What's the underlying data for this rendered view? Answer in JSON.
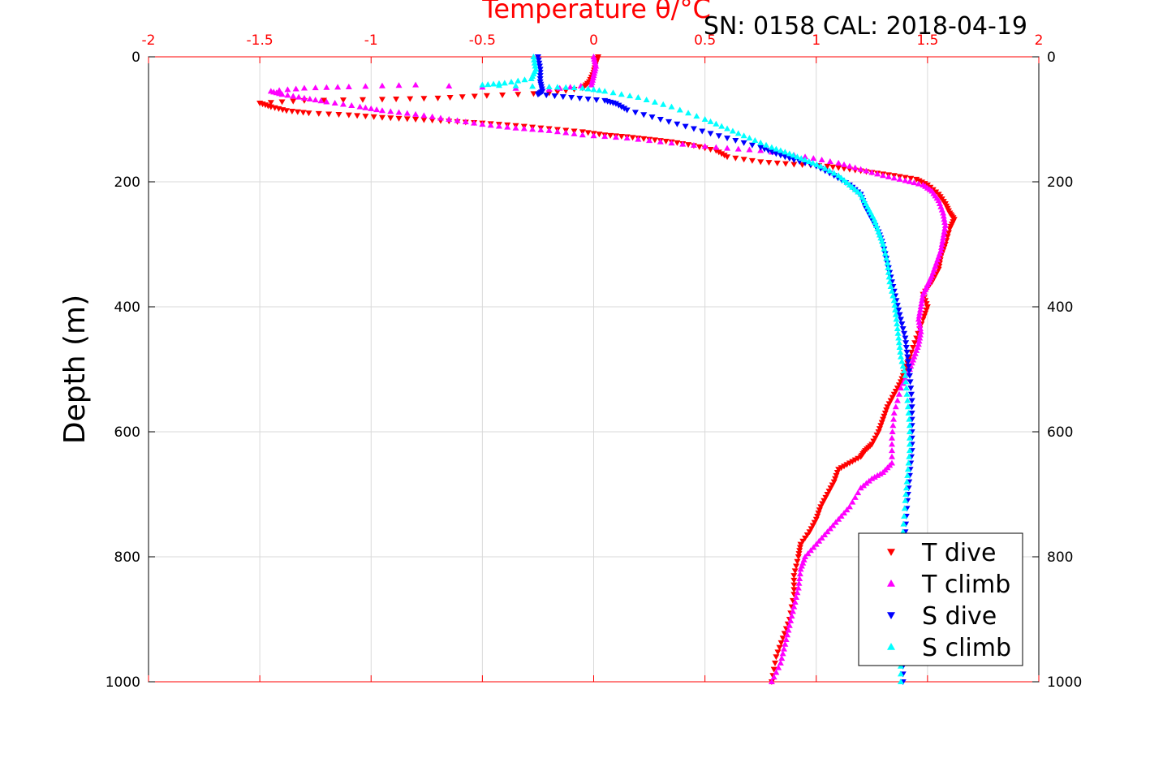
{
  "chart_data": {
    "type": "scatter",
    "title": "Temperature θ/°C",
    "annotation": "SN: 0158  CAL: 2018-04-19",
    "xlabel": "Temperature θ/°C",
    "ylabel": "Depth (m)",
    "xlim": [
      -2,
      2
    ],
    "ylim": [
      0,
      1000
    ],
    "y_reversed": true,
    "x_ticks": [
      "-2",
      "-1.5",
      "-1",
      "-0.5",
      "0",
      "0.5",
      "1",
      "1.5",
      "2"
    ],
    "y_ticks": [
      "0",
      "200",
      "400",
      "600",
      "800",
      "1000"
    ],
    "grid": true,
    "legend_position": "bottom-right",
    "colors": {
      "axis_x": "#ff0000",
      "axis_y": "#000000",
      "grid": "#d9d9d9"
    },
    "series": [
      {
        "name": "T dive",
        "marker": "triangle-down",
        "color": "#ff0000",
        "points": [
          [
            0.02,
            0
          ],
          [
            0.01,
            10
          ],
          [
            0.0,
            25
          ],
          [
            -0.02,
            40
          ],
          [
            -0.05,
            50
          ],
          [
            -0.2,
            58
          ],
          [
            -0.48,
            62
          ],
          [
            -0.7,
            66
          ],
          [
            -0.95,
            68
          ],
          [
            -1.3,
            70
          ],
          [
            -1.5,
            74
          ],
          [
            -1.45,
            80
          ],
          [
            -1.38,
            86
          ],
          [
            -1.28,
            90
          ],
          [
            -1.1,
            93
          ],
          [
            -0.95,
            97
          ],
          [
            -0.8,
            100
          ],
          [
            -0.65,
            103
          ],
          [
            -0.5,
            106
          ],
          [
            -0.35,
            110
          ],
          [
            -0.2,
            115
          ],
          [
            -0.05,
            120
          ],
          [
            0.05,
            125
          ],
          [
            0.15,
            128
          ],
          [
            0.25,
            132
          ],
          [
            0.35,
            136
          ],
          [
            0.45,
            142
          ],
          [
            0.55,
            150
          ],
          [
            0.6,
            160
          ],
          [
            0.75,
            168
          ],
          [
            0.9,
            172
          ],
          [
            1.05,
            175
          ],
          [
            1.15,
            180
          ],
          [
            1.25,
            185
          ],
          [
            1.35,
            190
          ],
          [
            1.45,
            196
          ],
          [
            1.5,
            205
          ],
          [
            1.55,
            220
          ],
          [
            1.58,
            235
          ],
          [
            1.6,
            250
          ],
          [
            1.62,
            260
          ],
          [
            1.6,
            275
          ],
          [
            1.58,
            300
          ],
          [
            1.56,
            320
          ],
          [
            1.55,
            340
          ],
          [
            1.52,
            360
          ],
          [
            1.48,
            380
          ],
          [
            1.5,
            400
          ],
          [
            1.48,
            420
          ],
          [
            1.45,
            450
          ],
          [
            1.42,
            480
          ],
          [
            1.4,
            500
          ],
          [
            1.38,
            520
          ],
          [
            1.35,
            540
          ],
          [
            1.32,
            560
          ],
          [
            1.3,
            580
          ],
          [
            1.28,
            600
          ],
          [
            1.25,
            620
          ],
          [
            1.22,
            630
          ],
          [
            1.2,
            640
          ],
          [
            1.15,
            650
          ],
          [
            1.1,
            660
          ],
          [
            1.08,
            680
          ],
          [
            1.05,
            700
          ],
          [
            1.02,
            720
          ],
          [
            1.0,
            740
          ],
          [
            0.97,
            760
          ],
          [
            0.93,
            780
          ],
          [
            0.92,
            800
          ],
          [
            0.9,
            830
          ],
          [
            0.9,
            860
          ],
          [
            0.88,
            900
          ],
          [
            0.85,
            930
          ],
          [
            0.82,
            960
          ],
          [
            0.8,
            1000
          ]
        ]
      },
      {
        "name": "T climb",
        "marker": "triangle-up",
        "color": "#ff00ff",
        "points": [
          [
            0.0,
            0
          ],
          [
            0.01,
            15
          ],
          [
            0.0,
            30
          ],
          [
            -0.01,
            45
          ],
          [
            -0.2,
            52
          ],
          [
            -0.8,
            45
          ],
          [
            -1.1,
            48
          ],
          [
            -1.3,
            50
          ],
          [
            -1.45,
            55
          ],
          [
            -1.4,
            60
          ],
          [
            -1.3,
            66
          ],
          [
            -1.2,
            72
          ],
          [
            -1.05,
            80
          ],
          [
            -0.95,
            86
          ],
          [
            -0.8,
            92
          ],
          [
            -0.65,
            100
          ],
          [
            -0.5,
            108
          ],
          [
            -0.35,
            114
          ],
          [
            -0.2,
            118
          ],
          [
            -0.05,
            125
          ],
          [
            0.15,
            130
          ],
          [
            0.35,
            138
          ],
          [
            0.55,
            145
          ],
          [
            0.75,
            150
          ],
          [
            0.95,
            160
          ],
          [
            1.1,
            170
          ],
          [
            1.2,
            180
          ],
          [
            1.3,
            190
          ],
          [
            1.4,
            198
          ],
          [
            1.48,
            205
          ],
          [
            1.52,
            215
          ],
          [
            1.55,
            230
          ],
          [
            1.57,
            250
          ],
          [
            1.58,
            270
          ],
          [
            1.57,
            290
          ],
          [
            1.56,
            310
          ],
          [
            1.54,
            330
          ],
          [
            1.52,
            350
          ],
          [
            1.5,
            365
          ],
          [
            1.48,
            380
          ],
          [
            1.47,
            400
          ],
          [
            1.46,
            420
          ],
          [
            1.47,
            440
          ],
          [
            1.46,
            460
          ],
          [
            1.44,
            480
          ],
          [
            1.42,
            500
          ],
          [
            1.38,
            530
          ],
          [
            1.35,
            570
          ],
          [
            1.34,
            610
          ],
          [
            1.34,
            650
          ],
          [
            1.3,
            665
          ],
          [
            1.25,
            675
          ],
          [
            1.2,
            690
          ],
          [
            1.15,
            720
          ],
          [
            1.1,
            740
          ],
          [
            1.05,
            760
          ],
          [
            1.0,
            780
          ],
          [
            0.95,
            800
          ],
          [
            0.93,
            820
          ],
          [
            0.92,
            850
          ],
          [
            0.9,
            880
          ],
          [
            0.88,
            910
          ],
          [
            0.86,
            940
          ],
          [
            0.84,
            970
          ],
          [
            0.8,
            1000
          ]
        ]
      },
      {
        "name": "S dive",
        "marker": "triangle-down",
        "color": "#0000ff",
        "points": [
          [
            -0.25,
            0
          ],
          [
            -0.24,
            20
          ],
          [
            -0.24,
            40
          ],
          [
            -0.23,
            55
          ],
          [
            -0.25,
            60
          ],
          [
            -0.1,
            65
          ],
          [
            0.05,
            70
          ],
          [
            0.1,
            75
          ],
          [
            0.15,
            85
          ],
          [
            0.3,
            100
          ],
          [
            0.45,
            115
          ],
          [
            0.6,
            130
          ],
          [
            0.75,
            145
          ],
          [
            0.82,
            155
          ],
          [
            0.9,
            165
          ],
          [
            1.0,
            175
          ],
          [
            1.08,
            190
          ],
          [
            1.15,
            205
          ],
          [
            1.2,
            220
          ],
          [
            1.22,
            240
          ],
          [
            1.25,
            260
          ],
          [
            1.28,
            280
          ],
          [
            1.3,
            300
          ],
          [
            1.32,
            330
          ],
          [
            1.34,
            360
          ],
          [
            1.36,
            390
          ],
          [
            1.38,
            420
          ],
          [
            1.4,
            450
          ],
          [
            1.41,
            480
          ],
          [
            1.42,
            510
          ],
          [
            1.43,
            550
          ],
          [
            1.43,
            590
          ],
          [
            1.43,
            630
          ],
          [
            1.42,
            670
          ],
          [
            1.41,
            710
          ],
          [
            1.4,
            760
          ],
          [
            1.39,
            800
          ],
          [
            1.39,
            850
          ],
          [
            1.39,
            900
          ],
          [
            1.39,
            950
          ],
          [
            1.39,
            1000
          ]
        ]
      },
      {
        "name": "S climb",
        "marker": "triangle-up",
        "color": "#00ffff",
        "points": [
          [
            -0.27,
            0
          ],
          [
            -0.26,
            20
          ],
          [
            -0.28,
            35
          ],
          [
            -0.4,
            42
          ],
          [
            -0.5,
            45
          ],
          [
            -0.2,
            48
          ],
          [
            -0.05,
            50
          ],
          [
            0.05,
            55
          ],
          [
            0.2,
            65
          ],
          [
            0.35,
            80
          ],
          [
            0.5,
            100
          ],
          [
            0.6,
            115
          ],
          [
            0.7,
            130
          ],
          [
            0.8,
            145
          ],
          [
            0.88,
            155
          ],
          [
            0.95,
            165
          ],
          [
            1.02,
            175
          ],
          [
            1.1,
            190
          ],
          [
            1.15,
            205
          ],
          [
            1.2,
            220
          ],
          [
            1.23,
            240
          ],
          [
            1.26,
            260
          ],
          [
            1.28,
            280
          ],
          [
            1.3,
            300
          ],
          [
            1.32,
            330
          ],
          [
            1.33,
            360
          ],
          [
            1.35,
            390
          ],
          [
            1.36,
            420
          ],
          [
            1.37,
            450
          ],
          [
            1.38,
            480
          ],
          [
            1.4,
            510
          ],
          [
            1.41,
            550
          ],
          [
            1.42,
            590
          ],
          [
            1.42,
            630
          ],
          [
            1.41,
            670
          ],
          [
            1.4,
            710
          ],
          [
            1.39,
            760
          ],
          [
            1.39,
            800
          ],
          [
            1.38,
            850
          ],
          [
            1.38,
            900
          ],
          [
            1.38,
            950
          ],
          [
            1.38,
            1000
          ]
        ]
      }
    ]
  }
}
